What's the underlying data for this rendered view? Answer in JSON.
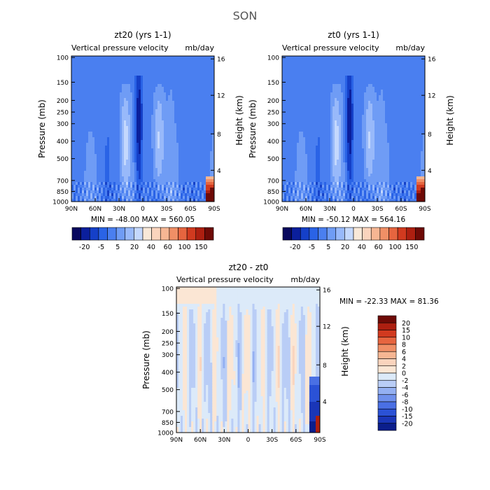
{
  "figure": {
    "title": "SON"
  },
  "colors": {
    "scale_main": [
      "#08085e",
      "#0b1f9c",
      "#1540c8",
      "#2a63e6",
      "#4a7ff0",
      "#6f9cf5",
      "#98b9fa",
      "#c4d8fd",
      "#f8e8d8",
      "#fad4bd",
      "#f6b693",
      "#f08f66",
      "#e6653f",
      "#d13a1f",
      "#ad1f10",
      "#6e0a06"
    ],
    "scale_diff": [
      "#6e0a06",
      "#ad1f10",
      "#d13a1f",
      "#e6653f",
      "#f08f66",
      "#f6b693",
      "#fad4bd",
      "#fbe6d4",
      "#dceaf9",
      "#b9cdf6",
      "#94b0f2",
      "#6f90ec",
      "#4a70e4",
      "#2b52d6",
      "#1a36b8",
      "#0b1e8c"
    ]
  },
  "chart_data": [
    {
      "type": "heatmap",
      "title": "zt20 (yrs 1-1)",
      "subtitle_left": "Vertical pressure velocity",
      "subtitle_right": "mb/day",
      "ylabel": "Pressure (mb)",
      "ylabel_right": "Height (km)",
      "x_ticks": [
        "90N",
        "60N",
        "30N",
        "0",
        "30S",
        "60S",
        "90S"
      ],
      "y_ticks": [
        "100",
        "150",
        "200",
        "250",
        "300",
        "400",
        "500",
        "700",
        "850",
        "1000"
      ],
      "y_ticks_right": [
        "16",
        "12",
        "8",
        "4"
      ],
      "stats": "MIN = -48.00   MAX = 560.05",
      "colorbar_ticks": [
        "-20",
        "-5",
        "5",
        "20",
        "40",
        "60",
        "100",
        "150"
      ]
    },
    {
      "type": "heatmap",
      "title": "zt0 (yrs 1-1)",
      "subtitle_left": "Vertical pressure velocity",
      "subtitle_right": "mb/day",
      "ylabel": "Pressure (mb)",
      "ylabel_right": "Height (km)",
      "x_ticks": [
        "90N",
        "60N",
        "30N",
        "0",
        "30S",
        "60S",
        "90S"
      ],
      "y_ticks": [
        "100",
        "150",
        "200",
        "250",
        "300",
        "400",
        "500",
        "700",
        "850",
        "1000"
      ],
      "y_ticks_right": [
        "16",
        "12",
        "8",
        "4"
      ],
      "stats": "MIN = -50.12   MAX = 564.16",
      "colorbar_ticks": [
        "-20",
        "-5",
        "5",
        "20",
        "40",
        "60",
        "100",
        "150"
      ]
    },
    {
      "type": "heatmap",
      "title": "zt20 - zt0",
      "subtitle_left": "Vertical pressure velocity",
      "subtitle_right": "mb/day",
      "ylabel": "Pressure (mb)",
      "ylabel_right": "Height (km)",
      "x_ticks": [
        "90N",
        "60N",
        "30N",
        "0",
        "30S",
        "60S",
        "90S"
      ],
      "y_ticks": [
        "100",
        "150",
        "200",
        "250",
        "300",
        "400",
        "500",
        "700",
        "850",
        "1000"
      ],
      "y_ticks_right": [
        "16",
        "12",
        "8",
        "4"
      ],
      "stats": "MIN = -22.33   MAX =  81.36",
      "colorbar_ticks": [
        "20",
        "15",
        "10",
        "8",
        "6",
        "4",
        "2",
        "0",
        "-2",
        "-4",
        "-6",
        "-8",
        "-10",
        "-15",
        "-20"
      ]
    }
  ]
}
